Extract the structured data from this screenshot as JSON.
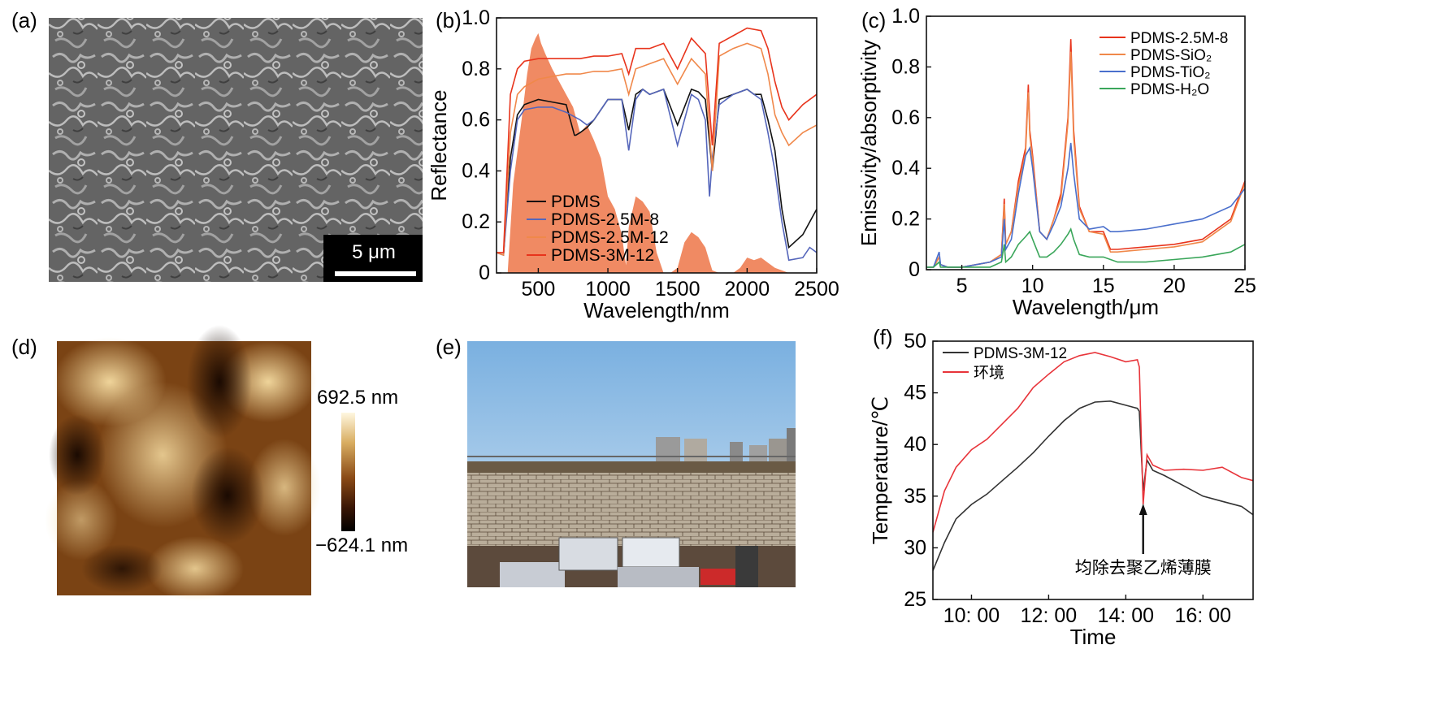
{
  "panels": {
    "a": {
      "label": "(a)",
      "scale_bar": "5 μm"
    },
    "b": {
      "label": "(b)"
    },
    "c": {
      "label": "(c)"
    },
    "d": {
      "label": "(d)",
      "colorbar_max": "692.5 nm",
      "colorbar_min": "−624.1 nm"
    },
    "e": {
      "label": "(e)"
    },
    "f": {
      "label": "(f)"
    }
  },
  "chart_data": [
    {
      "panel": "b",
      "type": "line",
      "xlabel": "Wavelength/nm",
      "ylabel": "Reflectance",
      "xlim": [
        200,
        2500
      ],
      "ylim": [
        0,
        1.0
      ],
      "xticks": [
        "500",
        "1000",
        "1500",
        "2000",
        "2500"
      ],
      "yticks": [
        "0",
        "0.2",
        "0.4",
        "0.6",
        "0.8",
        "1.0"
      ],
      "legend_position": "lower-left",
      "background_spectrum": {
        "color": "#f08a63",
        "x": [
          280,
          320,
          380,
          420,
          450,
          480,
          500,
          520,
          550,
          600,
          650,
          700,
          750,
          800,
          850,
          900,
          950,
          1000,
          1050,
          1100,
          1130,
          1150,
          1200,
          1250,
          1300,
          1350,
          1400,
          1450,
          1500,
          1550,
          1600,
          1650,
          1700,
          1750,
          1800,
          1850,
          1900,
          1950,
          2000,
          2050,
          2100,
          2150,
          2200,
          2250,
          2300
        ],
        "y": [
          0,
          0.35,
          0.6,
          0.78,
          0.88,
          0.92,
          0.94,
          0.9,
          0.86,
          0.8,
          0.75,
          0.7,
          0.65,
          0.55,
          0.58,
          0.52,
          0.45,
          0.3,
          0.25,
          0.15,
          0.03,
          0.18,
          0.3,
          0.28,
          0.24,
          0.08,
          0.0,
          0.0,
          0.02,
          0.12,
          0.16,
          0.14,
          0.1,
          0.01,
          0.0,
          0.0,
          0.0,
          0.02,
          0.06,
          0.05,
          0.06,
          0.04,
          0.02,
          0.01,
          0.0
        ]
      },
      "series": [
        {
          "name": "PDMS",
          "color": "#111111",
          "x": [
            200,
            250,
            300,
            350,
            400,
            500,
            600,
            700,
            760,
            770,
            800,
            850,
            900,
            1000,
            1100,
            1150,
            1200,
            1250,
            1300,
            1400,
            1500,
            1600,
            1650,
            1700,
            1750,
            1800,
            1900,
            2000,
            2050,
            2100,
            2150,
            2200,
            2250,
            2300,
            2400,
            2450,
            2500
          ],
          "y": [
            0.08,
            0.07,
            0.45,
            0.62,
            0.66,
            0.68,
            0.67,
            0.66,
            0.54,
            0.54,
            0.55,
            0.57,
            0.6,
            0.68,
            0.68,
            0.56,
            0.7,
            0.72,
            0.7,
            0.72,
            0.58,
            0.72,
            0.71,
            0.68,
            0.4,
            0.68,
            0.7,
            0.72,
            0.7,
            0.7,
            0.6,
            0.48,
            0.25,
            0.1,
            0.15,
            0.2,
            0.25
          ]
        },
        {
          "name": "PDMS-2.5M-8",
          "color": "#5566bb",
          "x": [
            200,
            250,
            300,
            350,
            400,
            500,
            600,
            700,
            800,
            850,
            900,
            1000,
            1100,
            1150,
            1200,
            1250,
            1300,
            1400,
            1500,
            1600,
            1650,
            1700,
            1730,
            1750,
            1800,
            1900,
            2000,
            2100,
            2150,
            2200,
            2250,
            2300,
            2400,
            2450,
            2500
          ],
          "y": [
            0.08,
            0.07,
            0.4,
            0.6,
            0.64,
            0.65,
            0.65,
            0.63,
            0.6,
            0.58,
            0.6,
            0.68,
            0.68,
            0.48,
            0.68,
            0.72,
            0.7,
            0.72,
            0.5,
            0.7,
            0.68,
            0.6,
            0.3,
            0.45,
            0.66,
            0.7,
            0.72,
            0.68,
            0.55,
            0.4,
            0.2,
            0.05,
            0.06,
            0.1,
            0.08
          ]
        },
        {
          "name": "PDMS-2.5M-12",
          "color": "#f0884a",
          "x": [
            200,
            250,
            300,
            350,
            400,
            500,
            600,
            700,
            800,
            900,
            1000,
            1100,
            1150,
            1200,
            1300,
            1400,
            1500,
            1600,
            1700,
            1750,
            1800,
            1900,
            2000,
            2100,
            2150,
            2200,
            2250,
            2300,
            2400,
            2500
          ],
          "y": [
            0.08,
            0.07,
            0.55,
            0.7,
            0.73,
            0.76,
            0.77,
            0.78,
            0.78,
            0.79,
            0.79,
            0.8,
            0.7,
            0.8,
            0.82,
            0.84,
            0.74,
            0.84,
            0.78,
            0.4,
            0.85,
            0.88,
            0.9,
            0.88,
            0.78,
            0.62,
            0.55,
            0.5,
            0.55,
            0.58
          ]
        },
        {
          "name": "PDMS-3M-12",
          "color": "#e8341c",
          "x": [
            200,
            250,
            300,
            350,
            400,
            500,
            600,
            700,
            800,
            900,
            1000,
            1100,
            1150,
            1200,
            1300,
            1400,
            1500,
            1600,
            1700,
            1750,
            1800,
            1900,
            2000,
            2100,
            2150,
            2200,
            2250,
            2300,
            2400,
            2500
          ],
          "y": [
            0.08,
            0.08,
            0.7,
            0.8,
            0.83,
            0.84,
            0.84,
            0.84,
            0.84,
            0.85,
            0.85,
            0.86,
            0.78,
            0.88,
            0.88,
            0.9,
            0.8,
            0.92,
            0.86,
            0.5,
            0.9,
            0.93,
            0.96,
            0.95,
            0.88,
            0.75,
            0.65,
            0.6,
            0.66,
            0.7
          ]
        }
      ]
    },
    {
      "panel": "c",
      "type": "line",
      "xlabel": "Wavelength/μm",
      "ylabel": "Emissivity/absorptivity",
      "xlim": [
        2.5,
        25
      ],
      "ylim": [
        0,
        1.0
      ],
      "xticks": [
        "5",
        "10",
        "15",
        "20",
        "25"
      ],
      "yticks": [
        "0",
        "0.2",
        "0.4",
        "0.6",
        "0.8",
        "1.0"
      ],
      "legend_position": "top-right",
      "series": [
        {
          "name": "PDMS-2.5M-8",
          "color": "#e8341c",
          "x": [
            2.5,
            3,
            3.4,
            3.5,
            4,
            5,
            6,
            7,
            7.8,
            8,
            8.1,
            8.5,
            9,
            9.5,
            9.7,
            9.8,
            10,
            10.5,
            11,
            11.5,
            12,
            12.5,
            12.7,
            12.9,
            13.3,
            14,
            15,
            15.5,
            16,
            18,
            20,
            22,
            24,
            25
          ],
          "y": [
            0.01,
            0.01,
            0.05,
            0.02,
            0.01,
            0.01,
            0.02,
            0.03,
            0.06,
            0.28,
            0.1,
            0.15,
            0.35,
            0.48,
            0.73,
            0.55,
            0.45,
            0.15,
            0.12,
            0.2,
            0.3,
            0.6,
            0.91,
            0.55,
            0.25,
            0.15,
            0.15,
            0.08,
            0.08,
            0.09,
            0.1,
            0.12,
            0.2,
            0.35
          ]
        },
        {
          "name": "PDMS-SiO₂",
          "color": "#f0884a",
          "x": [
            2.5,
            3,
            3.4,
            3.5,
            4,
            5,
            6,
            7,
            7.8,
            8,
            8.1,
            8.5,
            9,
            9.5,
            9.7,
            9.8,
            10,
            10.5,
            11,
            11.5,
            12,
            12.5,
            12.7,
            12.9,
            13.3,
            14,
            15,
            15.5,
            16,
            18,
            20,
            22,
            24,
            25
          ],
          "y": [
            0.01,
            0.01,
            0.05,
            0.02,
            0.01,
            0.01,
            0.02,
            0.03,
            0.06,
            0.26,
            0.1,
            0.15,
            0.33,
            0.46,
            0.7,
            0.53,
            0.43,
            0.15,
            0.12,
            0.2,
            0.28,
            0.58,
            0.86,
            0.52,
            0.24,
            0.15,
            0.14,
            0.07,
            0.07,
            0.08,
            0.09,
            0.11,
            0.19,
            0.34
          ]
        },
        {
          "name": "PDMS-TiO₂",
          "color": "#4a6fcc",
          "x": [
            2.5,
            3,
            3.4,
            3.5,
            4,
            5,
            6,
            7,
            7.8,
            8,
            8.1,
            8.5,
            9,
            9.5,
            9.8,
            10,
            10.5,
            11,
            11.5,
            12,
            12.5,
            12.7,
            12.9,
            13.3,
            14,
            15,
            15.5,
            16,
            18,
            20,
            22,
            24,
            25
          ],
          "y": [
            0.01,
            0.01,
            0.07,
            0.02,
            0.01,
            0.01,
            0.02,
            0.03,
            0.05,
            0.2,
            0.08,
            0.12,
            0.3,
            0.45,
            0.48,
            0.4,
            0.15,
            0.12,
            0.18,
            0.25,
            0.4,
            0.5,
            0.38,
            0.2,
            0.16,
            0.17,
            0.15,
            0.15,
            0.16,
            0.18,
            0.2,
            0.25,
            0.32
          ]
        },
        {
          "name": "PDMS-H₂O",
          "color": "#3aa65a",
          "x": [
            2.5,
            3,
            3.4,
            3.5,
            4,
            5,
            6,
            7,
            7.8,
            8,
            8.1,
            8.5,
            9,
            9.5,
            9.8,
            10,
            10.5,
            11,
            11.5,
            12,
            12.5,
            12.7,
            12.9,
            13.3,
            14,
            15,
            15.5,
            16,
            18,
            20,
            22,
            24,
            25
          ],
          "y": [
            0.01,
            0.01,
            0.03,
            0.01,
            0.01,
            0.01,
            0.01,
            0.01,
            0.03,
            0.1,
            0.03,
            0.05,
            0.1,
            0.13,
            0.15,
            0.12,
            0.05,
            0.05,
            0.07,
            0.1,
            0.14,
            0.16,
            0.12,
            0.06,
            0.05,
            0.05,
            0.04,
            0.03,
            0.03,
            0.04,
            0.05,
            0.07,
            0.1
          ]
        }
      ]
    },
    {
      "panel": "f",
      "type": "line",
      "xlabel": "Time",
      "ylabel": "Temperature/℃",
      "xlim": [
        9,
        17.3
      ],
      "ylim": [
        25,
        50
      ],
      "xticks": [
        "10: 00",
        "12: 00",
        "14: 00",
        "16: 00"
      ],
      "xtick_values": [
        10,
        12,
        14,
        16
      ],
      "yticks": [
        "25",
        "30",
        "35",
        "40",
        "45",
        "50"
      ],
      "legend_position": "top-left",
      "annotation": "均除去聚乙烯薄膜",
      "annotation_x": 14.45,
      "series": [
        {
          "name": "PDMS-3M-12",
          "color": "#333333",
          "x": [
            9.0,
            9.3,
            9.6,
            10.0,
            10.4,
            10.8,
            11.2,
            11.6,
            12.0,
            12.4,
            12.8,
            13.2,
            13.6,
            14.0,
            14.3,
            14.35,
            14.45,
            14.55,
            14.7,
            15.0,
            15.5,
            16.0,
            16.5,
            17.0,
            17.3
          ],
          "y": [
            27.8,
            30.5,
            32.8,
            34.2,
            35.2,
            36.5,
            37.8,
            39.2,
            40.8,
            42.3,
            43.5,
            44.1,
            44.2,
            43.8,
            43.5,
            43.2,
            35.5,
            38.5,
            37.5,
            37.0,
            36.0,
            35.0,
            34.5,
            34.0,
            33.2
          ]
        },
        {
          "name": "环境",
          "color": "#e8343a",
          "x": [
            9.0,
            9.3,
            9.6,
            10.0,
            10.4,
            10.8,
            11.2,
            11.6,
            12.0,
            12.4,
            12.8,
            13.2,
            13.6,
            14.0,
            14.3,
            14.35,
            14.45,
            14.55,
            14.7,
            15.0,
            15.5,
            16.0,
            16.5,
            17.0,
            17.3
          ],
          "y": [
            31.5,
            35.5,
            37.8,
            39.5,
            40.5,
            42.0,
            43.5,
            45.5,
            46.8,
            48.0,
            48.6,
            48.9,
            48.5,
            48.0,
            48.2,
            47.5,
            34.2,
            39.0,
            38.0,
            37.5,
            37.6,
            37.5,
            37.8,
            36.8,
            36.5
          ]
        }
      ]
    }
  ]
}
